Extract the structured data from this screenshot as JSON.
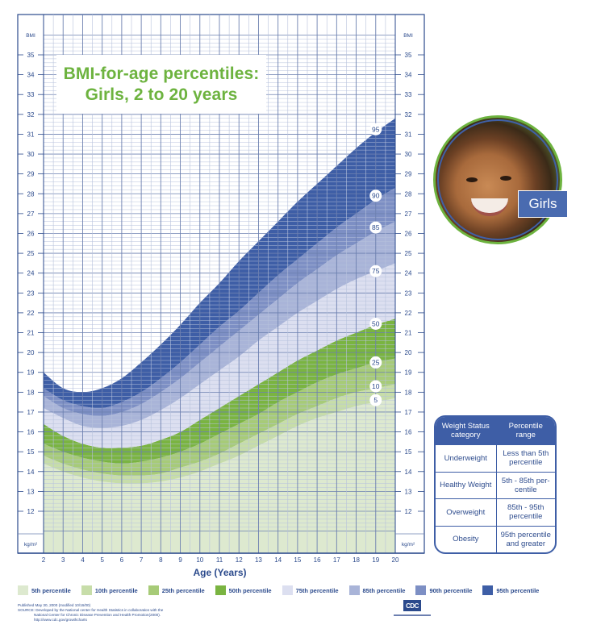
{
  "title": {
    "line1": "BMI-for-age percentiles:",
    "line2": "Girls, 2 to 20 years"
  },
  "badge": {
    "label": "Girls"
  },
  "axes": {
    "y_label_top": "BMI",
    "y_label_bottom": "kg/m²",
    "x_title": "Age (Years)",
    "y_ticks": [
      12,
      13,
      14,
      15,
      16,
      17,
      18,
      19,
      20,
      21,
      22,
      23,
      24,
      25,
      26,
      27,
      28,
      29,
      30,
      31,
      32,
      33,
      34,
      35
    ],
    "x_ticks": [
      2,
      3,
      4,
      5,
      6,
      7,
      8,
      9,
      10,
      11,
      12,
      13,
      14,
      15,
      16,
      17,
      18,
      19,
      20
    ]
  },
  "colors": {
    "frame": "#2b4a8c",
    "grid_major": "#6d80b0",
    "grid_minor": "#b7c2dc",
    "title_green": "#6db33f",
    "band_below_p5": "#dde9cf",
    "band_p5_p10": "#c7dda9",
    "band_p10_p25": "#a7cb78",
    "band_p25_p50": "#7ab441",
    "band_p50_p75": "#dcdff0",
    "band_p75_p85": "#a9b4d8",
    "band_p85_p90": "#7d8fc4",
    "band_p90_p95": "#3e5ea6"
  },
  "legend": [
    {
      "label": "5th percentile",
      "color": "#dde9cf"
    },
    {
      "label": "10th percentile",
      "color": "#c7dda9"
    },
    {
      "label": "25th percentile",
      "color": "#a7cb78"
    },
    {
      "label": "50th percentile",
      "color": "#7ab441"
    },
    {
      "label": "75th percentile",
      "color": "#dcdff0"
    },
    {
      "label": "85th percentile",
      "color": "#a9b4d8"
    },
    {
      "label": "90th percentile",
      "color": "#7d8fc4"
    },
    {
      "label": "95th percentile",
      "color": "#3e5ea6"
    }
  ],
  "weight_status_table": {
    "headers": [
      "Weight Status category",
      "Percentile range"
    ],
    "rows": [
      [
        "Underweight",
        "Less than 5th percentile"
      ],
      [
        "Healthy Weight",
        "5th - 85th per-centile"
      ],
      [
        "Overweight",
        "85th - 95th percentile"
      ],
      [
        "Obesity",
        "95th percentile and greater"
      ]
    ]
  },
  "footer": {
    "published": "Published May 30, 2000 (modified 10/16/00)",
    "source_1": "SOURCE: Developed by the National center for Health Statistics in collaboration with the",
    "source_2": "National Center for Chronic Disease Prevention and Health Promotion(2000).",
    "source_3": "http://www.cdc.gov/growthcharts",
    "logo": "CDC"
  },
  "chart_data": {
    "type": "area",
    "title": "BMI-for-age percentiles: Girls, 2 to 20 years",
    "xlabel": "Age (Years)",
    "ylabel": "BMI (kg/m²)",
    "xlim": [
      2,
      20
    ],
    "ylim": [
      11,
      36
    ],
    "grid": true,
    "x": [
      2,
      3,
      4,
      5,
      6,
      7,
      8,
      9,
      10,
      11,
      12,
      13,
      14,
      15,
      16,
      17,
      18,
      19,
      20
    ],
    "series": [
      {
        "name": "5th percentile",
        "label_at_19": "5",
        "values": [
          14.4,
          14.0,
          13.7,
          13.5,
          13.4,
          13.4,
          13.5,
          13.7,
          14.0,
          14.4,
          14.8,
          15.3,
          15.8,
          16.3,
          16.7,
          17.0,
          17.3,
          17.5,
          17.7
        ]
      },
      {
        "name": "10th percentile",
        "label_at_19": "10",
        "values": [
          14.8,
          14.4,
          14.1,
          13.9,
          13.8,
          13.8,
          13.9,
          14.2,
          14.5,
          14.9,
          15.4,
          15.9,
          16.4,
          16.9,
          17.3,
          17.7,
          18.0,
          18.2,
          18.4
        ]
      },
      {
        "name": "25th percentile",
        "label_at_19": "25",
        "values": [
          15.4,
          15.0,
          14.7,
          14.5,
          14.4,
          14.5,
          14.7,
          15.0,
          15.4,
          15.9,
          16.4,
          16.9,
          17.5,
          18.0,
          18.5,
          18.9,
          19.2,
          19.5,
          19.7
        ]
      },
      {
        "name": "50th percentile",
        "label_at_19": "50",
        "values": [
          16.4,
          15.8,
          15.4,
          15.2,
          15.2,
          15.3,
          15.6,
          16.0,
          16.6,
          17.2,
          17.8,
          18.4,
          19.0,
          19.6,
          20.1,
          20.6,
          21.0,
          21.4,
          21.7
        ]
      },
      {
        "name": "75th percentile",
        "label_at_19": "75",
        "values": [
          17.2,
          16.7,
          16.3,
          16.2,
          16.3,
          16.6,
          17.1,
          17.7,
          18.4,
          19.1,
          19.8,
          20.6,
          21.3,
          22.0,
          22.6,
          23.2,
          23.7,
          24.1,
          24.5
        ]
      },
      {
        "name": "85th percentile",
        "label_at_19": "85",
        "values": [
          17.8,
          17.2,
          16.9,
          16.8,
          17.0,
          17.4,
          18.0,
          18.7,
          19.5,
          20.3,
          21.1,
          21.9,
          22.7,
          23.5,
          24.2,
          24.9,
          25.5,
          26.1,
          26.6
        ]
      },
      {
        "name": "90th percentile",
        "label_at_19": "90",
        "values": [
          18.2,
          17.6,
          17.3,
          17.2,
          17.5,
          18.0,
          18.7,
          19.5,
          20.4,
          21.3,
          22.1,
          23.0,
          23.9,
          24.7,
          25.5,
          26.3,
          27.0,
          27.7,
          28.3
        ]
      },
      {
        "name": "95th percentile",
        "label_at_19": "95",
        "values": [
          19.0,
          18.2,
          18.0,
          18.2,
          18.7,
          19.5,
          20.4,
          21.4,
          22.5,
          23.5,
          24.6,
          25.6,
          26.6,
          27.6,
          28.5,
          29.4,
          30.3,
          31.1,
          31.8
        ]
      }
    ]
  }
}
